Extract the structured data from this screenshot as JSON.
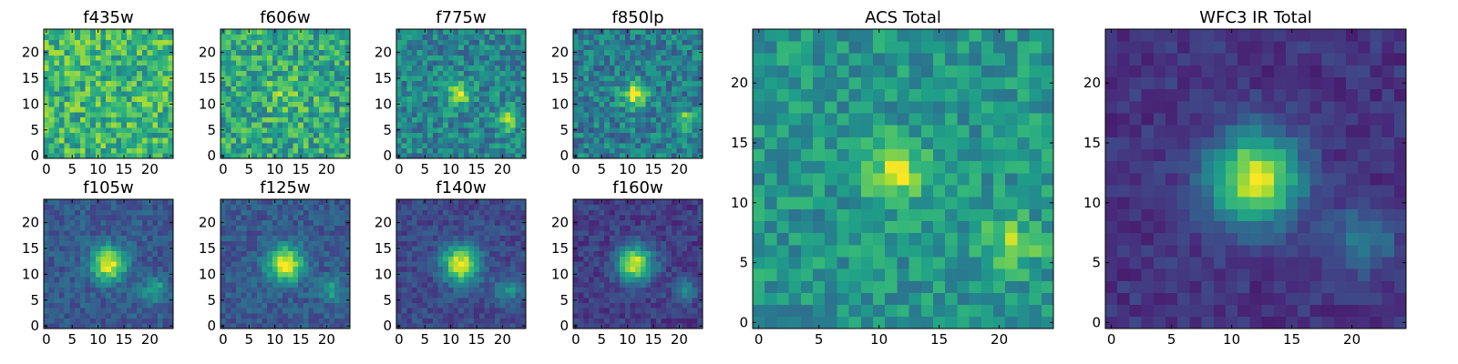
{
  "chart_data": [
    {
      "type": "heatmap",
      "title": "f435w",
      "xticks": [
        0,
        5,
        10,
        15,
        20
      ],
      "yticks": [
        0,
        5,
        10,
        15,
        20
      ],
      "xlim": [
        -0.5,
        24.5
      ],
      "ylim": [
        -0.5,
        24.5
      ],
      "grid": false,
      "colormap": "viridis",
      "sources": [],
      "noise": 0.22,
      "base": 0.66,
      "seed": 11
    },
    {
      "type": "heatmap",
      "title": "f606w",
      "xticks": [
        0,
        5,
        10,
        15,
        20
      ],
      "yticks": [
        0,
        5,
        10,
        15,
        20
      ],
      "xlim": [
        -0.5,
        24.5
      ],
      "ylim": [
        -0.5,
        24.5
      ],
      "grid": false,
      "colormap": "viridis",
      "sources": [
        {
          "x": 12,
          "y": 12,
          "amp": 0.15,
          "sigma": 2.5
        }
      ],
      "noise": 0.22,
      "base": 0.6,
      "seed": 23
    },
    {
      "type": "heatmap",
      "title": "f775w",
      "xticks": [
        0,
        5,
        10,
        15,
        20
      ],
      "yticks": [
        0,
        5,
        10,
        15,
        20
      ],
      "xlim": [
        -0.5,
        24.5
      ],
      "ylim": [
        -0.5,
        24.5
      ],
      "grid": false,
      "colormap": "viridis",
      "sources": [
        {
          "x": 11.5,
          "y": 12,
          "amp": 0.45,
          "sigma": 1.6
        },
        {
          "x": 21,
          "y": 7,
          "amp": 0.4,
          "sigma": 1.4
        }
      ],
      "noise": 0.18,
      "base": 0.45,
      "seed": 37
    },
    {
      "type": "heatmap",
      "title": "f850lp",
      "xticks": [
        0,
        5,
        10,
        15,
        20
      ],
      "yticks": [
        0,
        5,
        10,
        15,
        20
      ],
      "xlim": [
        -0.5,
        24.5
      ],
      "ylim": [
        -0.5,
        24.5
      ],
      "grid": false,
      "colormap": "viridis",
      "sources": [
        {
          "x": 11.5,
          "y": 12,
          "amp": 0.5,
          "sigma": 1.8
        },
        {
          "x": 21,
          "y": 7,
          "amp": 0.35,
          "sigma": 1.4
        }
      ],
      "noise": 0.18,
      "base": 0.42,
      "seed": 41
    },
    {
      "type": "heatmap",
      "title": "f105w",
      "xticks": [
        0,
        5,
        10,
        15,
        20
      ],
      "yticks": [
        0,
        5,
        10,
        15,
        20
      ],
      "xlim": [
        -0.5,
        24.5
      ],
      "ylim": [
        -0.5,
        24.5
      ],
      "grid": false,
      "colormap": "viridis",
      "sources": [
        {
          "x": 12,
          "y": 12,
          "amp": 0.7,
          "sigma": 2.3
        },
        {
          "x": 21,
          "y": 7,
          "amp": 0.35,
          "sigma": 1.6
        }
      ],
      "noise": 0.1,
      "base": 0.28,
      "seed": 53
    },
    {
      "type": "heatmap",
      "title": "f125w",
      "xticks": [
        0,
        5,
        10,
        15,
        20
      ],
      "yticks": [
        0,
        5,
        10,
        15,
        20
      ],
      "xlim": [
        -0.5,
        24.5
      ],
      "ylim": [
        -0.5,
        24.5
      ],
      "grid": false,
      "colormap": "viridis",
      "sources": [
        {
          "x": 12,
          "y": 12,
          "amp": 0.72,
          "sigma": 2.4
        },
        {
          "x": 21,
          "y": 7,
          "amp": 0.3,
          "sigma": 1.6
        }
      ],
      "noise": 0.1,
      "base": 0.28,
      "seed": 67
    },
    {
      "type": "heatmap",
      "title": "f140w",
      "xticks": [
        0,
        5,
        10,
        15,
        20
      ],
      "yticks": [
        0,
        5,
        10,
        15,
        20
      ],
      "xlim": [
        -0.5,
        24.5
      ],
      "ylim": [
        -0.5,
        24.5
      ],
      "grid": false,
      "colormap": "viridis",
      "sources": [
        {
          "x": 12,
          "y": 12,
          "amp": 0.75,
          "sigma": 2.5
        },
        {
          "x": 21,
          "y": 7,
          "amp": 0.32,
          "sigma": 1.7
        }
      ],
      "noise": 0.09,
      "base": 0.22,
      "seed": 71
    },
    {
      "type": "heatmap",
      "title": "f160w",
      "xticks": [
        0,
        5,
        10,
        15,
        20
      ],
      "yticks": [
        0,
        5,
        10,
        15,
        20
      ],
      "xlim": [
        -0.5,
        24.5
      ],
      "ylim": [
        -0.5,
        24.5
      ],
      "grid": false,
      "colormap": "viridis",
      "sources": [
        {
          "x": 11.5,
          "y": 12,
          "amp": 0.78,
          "sigma": 2.4
        },
        {
          "x": 21,
          "y": 7,
          "amp": 0.3,
          "sigma": 1.7
        }
      ],
      "noise": 0.09,
      "base": 0.18,
      "seed": 83
    },
    {
      "type": "heatmap",
      "title": "ACS Total",
      "xticks": [
        0,
        5,
        10,
        15,
        20
      ],
      "yticks": [
        0,
        5,
        10,
        15,
        20
      ],
      "xlim": [
        -0.5,
        24.5
      ],
      "ylim": [
        -0.5,
        24.5
      ],
      "grid": false,
      "colormap": "viridis",
      "sources": [
        {
          "x": 11.5,
          "y": 12.5,
          "amp": 0.4,
          "sigma": 1.7
        },
        {
          "x": 21,
          "y": 6.5,
          "amp": 0.32,
          "sigma": 1.5
        }
      ],
      "noise": 0.15,
      "base": 0.52,
      "seed": 97
    },
    {
      "type": "heatmap",
      "title": "WFC3 IR Total",
      "xticks": [
        0,
        5,
        10,
        15,
        20
      ],
      "yticks": [
        0,
        5,
        10,
        15,
        20
      ],
      "xlim": [
        -0.5,
        24.5
      ],
      "ylim": [
        -0.5,
        24.5
      ],
      "grid": false,
      "colormap": "viridis",
      "sources": [
        {
          "x": 12,
          "y": 12,
          "amp": 0.82,
          "sigma": 2.6
        },
        {
          "x": 21,
          "y": 7,
          "amp": 0.28,
          "sigma": 1.8
        }
      ],
      "noise": 0.07,
      "base": 0.15,
      "seed": 101
    }
  ]
}
